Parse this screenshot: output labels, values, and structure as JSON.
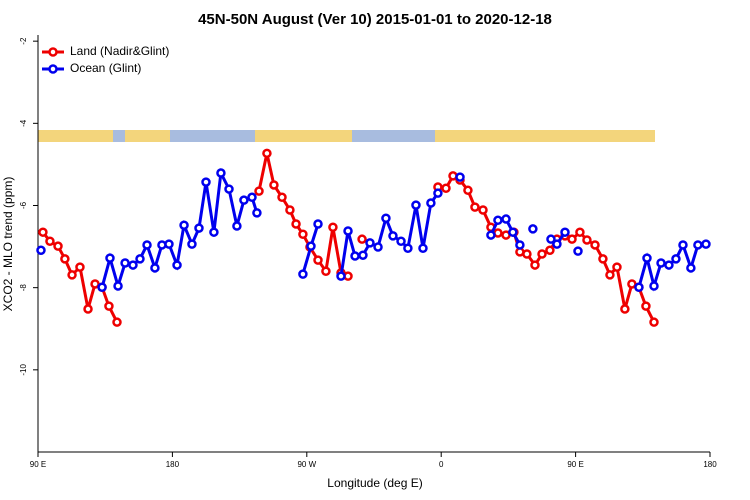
{
  "chart_data": {
    "type": "line",
    "title": "45N-50N August (Ver 10)   2015-01-01 to 2020-12-18",
    "x_label": "Longitude (deg E)",
    "y_label": "XCO2 - MLO trend (ppm)",
    "xlim": [
      90,
      540
    ],
    "ylim": [
      -12,
      -1.85
    ],
    "xticks": [
      {
        "value": 90,
        "label": "90 E"
      },
      180,
      {
        "value": 270,
        "label": "90 W"
      },
      {
        "value": 360,
        "label": "0"
      },
      {
        "value": 450,
        "label": "90 E"
      },
      {
        "value": 540,
        "label": "180"
      }
    ],
    "yticks": [
      -2,
      -4,
      -6,
      -8,
      -10
    ],
    "legend": "top-left",
    "series": [
      {
        "name": "Land (Nadir&Glint)",
        "color": "#ee0000",
        "x": [
          93.3,
          98,
          103.4,
          108,
          112.8,
          118.1,
          123.5,
          128.2,
          132.9,
          137.5,
          142.9,
          null,
          238,
          243.3,
          248,
          253.4,
          258.7,
          262.8,
          267.4,
          272.1,
          277.5,
          282.8,
          287.5,
          292.9,
          297.6,
          null,
          307,
          null,
          357.8,
          363.2,
          367.9,
          372.6,
          377.9,
          382.6,
          388,
          393.3,
          398,
          403.4,
          408.7,
          412.7,
          417.4,
          422.8,
          427.5,
          432.8,
          437.5,
          442.9,
          447.6,
          452.9,
          457.6,
          463,
          468.3,
          473,
          477.7,
          483,
          487.7,
          492.4,
          497.1,
          502.5
        ],
        "values": [
          -6.65,
          -6.87,
          -6.99,
          -7.3,
          -7.69,
          -7.5,
          -8.52,
          -7.91,
          -7.99,
          -8.45,
          -8.84,
          null,
          -5.65,
          -4.73,
          -5.5,
          -5.8,
          -6.11,
          -6.45,
          -6.7,
          -7.01,
          -7.33,
          -7.6,
          -6.53,
          -7.64,
          -7.72,
          null,
          -6.82,
          null,
          -5.55,
          -5.58,
          -5.28,
          -5.38,
          -5.63,
          -6.04,
          -6.11,
          -6.53,
          -6.67,
          -6.72,
          -6.65,
          -7.13,
          -7.18,
          -7.45,
          -7.18,
          -7.09,
          -6.82,
          -6.74,
          -6.82,
          -6.65,
          -6.84,
          -6.96,
          -7.3,
          -7.69,
          -7.5,
          -8.52,
          -7.91,
          -7.99,
          -8.45,
          -8.84
        ]
      },
      {
        "name": "Ocean (Glint)",
        "color": "#0000ee",
        "x": [
          92,
          null,
          132.9,
          138.2,
          143.6,
          148.3,
          153.6,
          158.3,
          163,
          168.3,
          173,
          177.7,
          183.1,
          187.8,
          193.1,
          197.8,
          202.5,
          207.8,
          212.5,
          217.9,
          223.2,
          227.9,
          233.3,
          236.6,
          null,
          267.4,
          272.8,
          277.5,
          null,
          292.9,
          297.6,
          302.3,
          307.6,
          312.3,
          317.7,
          323,
          327.7,
          333.1,
          337.7,
          343.1,
          347.8,
          353.1,
          357.8,
          null,
          372.6,
          null,
          393.3,
          398,
          403.4,
          408,
          412.7,
          null,
          421.4,
          null,
          433.5,
          437.5,
          442.9,
          null,
          451.6,
          null,
          492.4,
          497.8,
          502.5,
          507.2,
          512.5,
          517.2,
          521.9,
          527.2,
          531.9,
          537.3
        ],
        "values": [
          -7.09,
          null,
          -7.99,
          -7.28,
          -7.96,
          -7.4,
          -7.45,
          -7.3,
          -6.96,
          -7.52,
          -6.96,
          -6.94,
          -7.45,
          -6.48,
          -6.94,
          -6.55,
          -5.43,
          -6.65,
          -5.21,
          -5.6,
          -6.5,
          -5.87,
          -5.8,
          -6.18,
          null,
          -7.67,
          -6.99,
          -6.45,
          null,
          -7.72,
          -6.62,
          -7.23,
          -7.21,
          -6.91,
          -7.01,
          -6.31,
          -6.74,
          -6.87,
          -7.04,
          -5.99,
          -7.04,
          -5.94,
          -5.7,
          null,
          -5.31,
          null,
          -6.72,
          -6.36,
          -6.33,
          -6.65,
          -6.96,
          null,
          -6.57,
          null,
          -6.82,
          -6.94,
          -6.65,
          null,
          -7.11,
          null,
          -7.99,
          -7.28,
          -7.96,
          -7.4,
          -7.45,
          -7.3,
          -6.96,
          -7.52,
          -6.96,
          -6.94
        ]
      }
    ]
  }
}
